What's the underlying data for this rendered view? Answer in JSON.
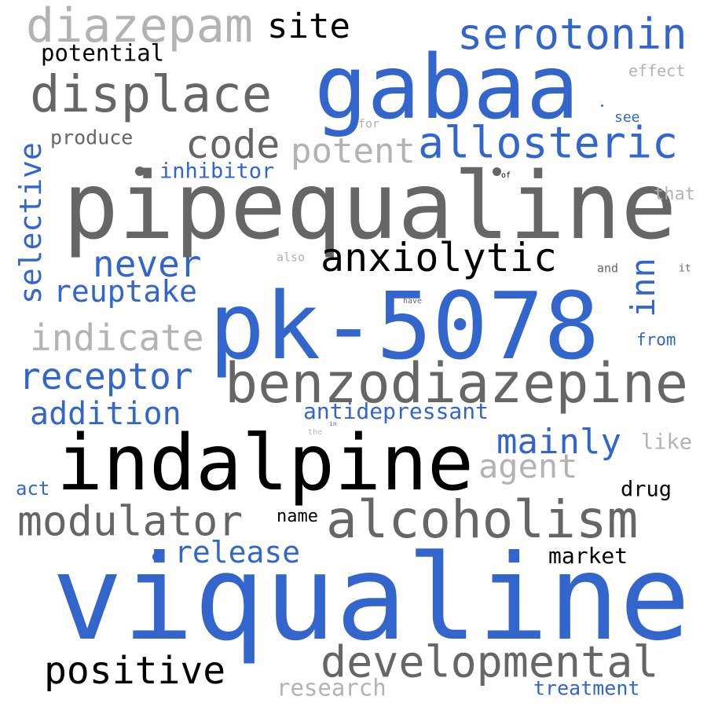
{
  "palette": {
    "blue": "#3366cc",
    "gray": "#666666",
    "light": "#b3b3b3",
    "black": "#000000"
  },
  "words": [
    {
      "text": "viqualine",
      "color": "blue"
    },
    {
      "text": "pk-5078",
      "color": "blue"
    },
    {
      "text": "pipequaline",
      "color": "gray"
    },
    {
      "text": "indalpine",
      "color": "black"
    },
    {
      "text": "gabaa",
      "color": "blue"
    },
    {
      "text": "benzodiazepine",
      "color": "gray"
    },
    {
      "text": "alcoholism",
      "color": "gray"
    },
    {
      "text": "developmental",
      "color": "gray"
    },
    {
      "text": "displace",
      "color": "gray"
    },
    {
      "text": "diazepam",
      "color": "light"
    },
    {
      "text": "modulator",
      "color": "gray"
    },
    {
      "text": "positive",
      "color": "black"
    },
    {
      "text": "serotonin",
      "color": "blue"
    },
    {
      "text": "allosteric",
      "color": "blue"
    },
    {
      "text": "anxiolytic",
      "color": "black"
    },
    {
      "text": "code",
      "color": "gray"
    },
    {
      "text": "receptor",
      "color": "blue"
    },
    {
      "text": "indicate",
      "color": "light"
    },
    {
      "text": "never",
      "color": "blue"
    },
    {
      "text": "potent",
      "color": "light"
    },
    {
      "text": "site",
      "color": "black"
    },
    {
      "text": "mainly",
      "color": "blue"
    },
    {
      "text": "agent",
      "color": "light"
    },
    {
      "text": "selective",
      "color": "blue"
    },
    {
      "text": "inn",
      "color": "blue"
    },
    {
      "text": "addition",
      "color": "blue"
    },
    {
      "text": "reuptake",
      "color": "blue"
    },
    {
      "text": "release",
      "color": "blue"
    },
    {
      "text": "antidepressant",
      "color": "blue"
    },
    {
      "text": "research",
      "color": "light"
    },
    {
      "text": "potential",
      "color": "black"
    },
    {
      "text": "inhibitor",
      "color": "blue"
    },
    {
      "text": "produce",
      "color": "gray"
    },
    {
      "text": "market",
      "color": "black"
    },
    {
      "text": "treatment",
      "color": "blue"
    },
    {
      "text": "drug",
      "color": "black"
    },
    {
      "text": "like",
      "color": "light"
    },
    {
      "text": "name",
      "color": "black"
    },
    {
      "text": "act",
      "color": "blue"
    },
    {
      "text": "effect",
      "color": "light"
    },
    {
      "text": "that",
      "color": "light"
    },
    {
      "text": "from",
      "color": "blue"
    },
    {
      "text": "see",
      "color": "blue"
    },
    {
      "text": "for",
      "color": "light"
    },
    {
      "text": "also",
      "color": "light"
    },
    {
      "text": "and",
      "color": "gray"
    },
    {
      "text": "it",
      "color": "gray"
    },
    {
      "text": "have",
      "color": "gray"
    },
    {
      "text": "of",
      "color": "black"
    },
    {
      "text": "the",
      "color": "light"
    },
    {
      "text": "in",
      "color": "blue"
    }
  ]
}
